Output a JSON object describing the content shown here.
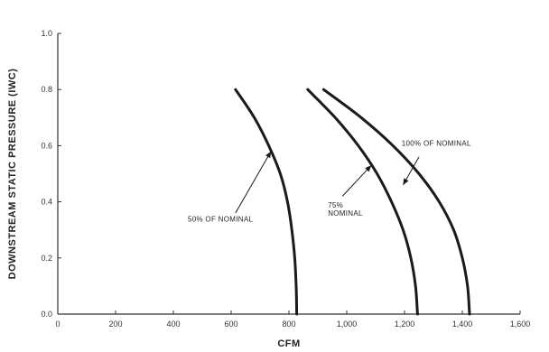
{
  "chart_data": {
    "type": "line",
    "title": "",
    "xlabel": "CFM",
    "ylabel": "DOWNSTREAM STATIC PRESSURE (IWC)",
    "xlim": [
      0,
      1600
    ],
    "ylim": [
      0,
      1.0
    ],
    "x_ticks": [
      0,
      200,
      400,
      600,
      800,
      1000,
      1200,
      1400,
      1600
    ],
    "x_tick_labels": [
      "0",
      "200",
      "400",
      "600",
      "800",
      "1,000",
      "1,200",
      "1,400",
      "1,600"
    ],
    "y_ticks": [
      0,
      0.2,
      0.4,
      0.6,
      0.8,
      1.0
    ],
    "y_tick_labels": [
      "0.0",
      "0.2",
      "0.4",
      "0.6",
      "0.8",
      "1.0"
    ],
    "grid": false,
    "series": [
      {
        "name": "50% OF NOMINAL",
        "x": [
          615,
          680,
          730,
          770,
          795,
          810,
          820,
          825,
          827
        ],
        "y": [
          0.8,
          0.7,
          0.6,
          0.5,
          0.4,
          0.3,
          0.2,
          0.1,
          0.0
        ]
      },
      {
        "name": "75% NOMINAL",
        "x": [
          865,
          960,
          1040,
          1105,
          1155,
          1195,
          1222,
          1238,
          1245
        ],
        "y": [
          0.8,
          0.7,
          0.6,
          0.5,
          0.4,
          0.3,
          0.2,
          0.1,
          0.0
        ]
      },
      {
        "name": "100% OF NOMINAL",
        "x": [
          920,
          1050,
          1160,
          1250,
          1320,
          1370,
          1400,
          1418,
          1425
        ],
        "y": [
          0.8,
          0.7,
          0.6,
          0.5,
          0.4,
          0.3,
          0.2,
          0.1,
          0.0
        ]
      }
    ],
    "annotations": [
      {
        "lines": [
          "50% OF NOMINAL"
        ],
        "text_at": [
          450,
          0.33
        ],
        "arrow_from": [
          615,
          0.36
        ],
        "arrow_to": [
          738,
          0.58
        ]
      },
      {
        "lines": [
          "75%",
          "NOMINAL"
        ],
        "text_at": [
          935,
          0.38
        ],
        "arrow_from": [
          985,
          0.42
        ],
        "arrow_to": [
          1085,
          0.53
        ]
      },
      {
        "lines": [
          "100% OF NOMINAL"
        ],
        "text_at": [
          1190,
          0.6
        ],
        "arrow_from": [
          1250,
          0.56
        ],
        "arrow_to": [
          1195,
          0.46
        ]
      }
    ]
  }
}
